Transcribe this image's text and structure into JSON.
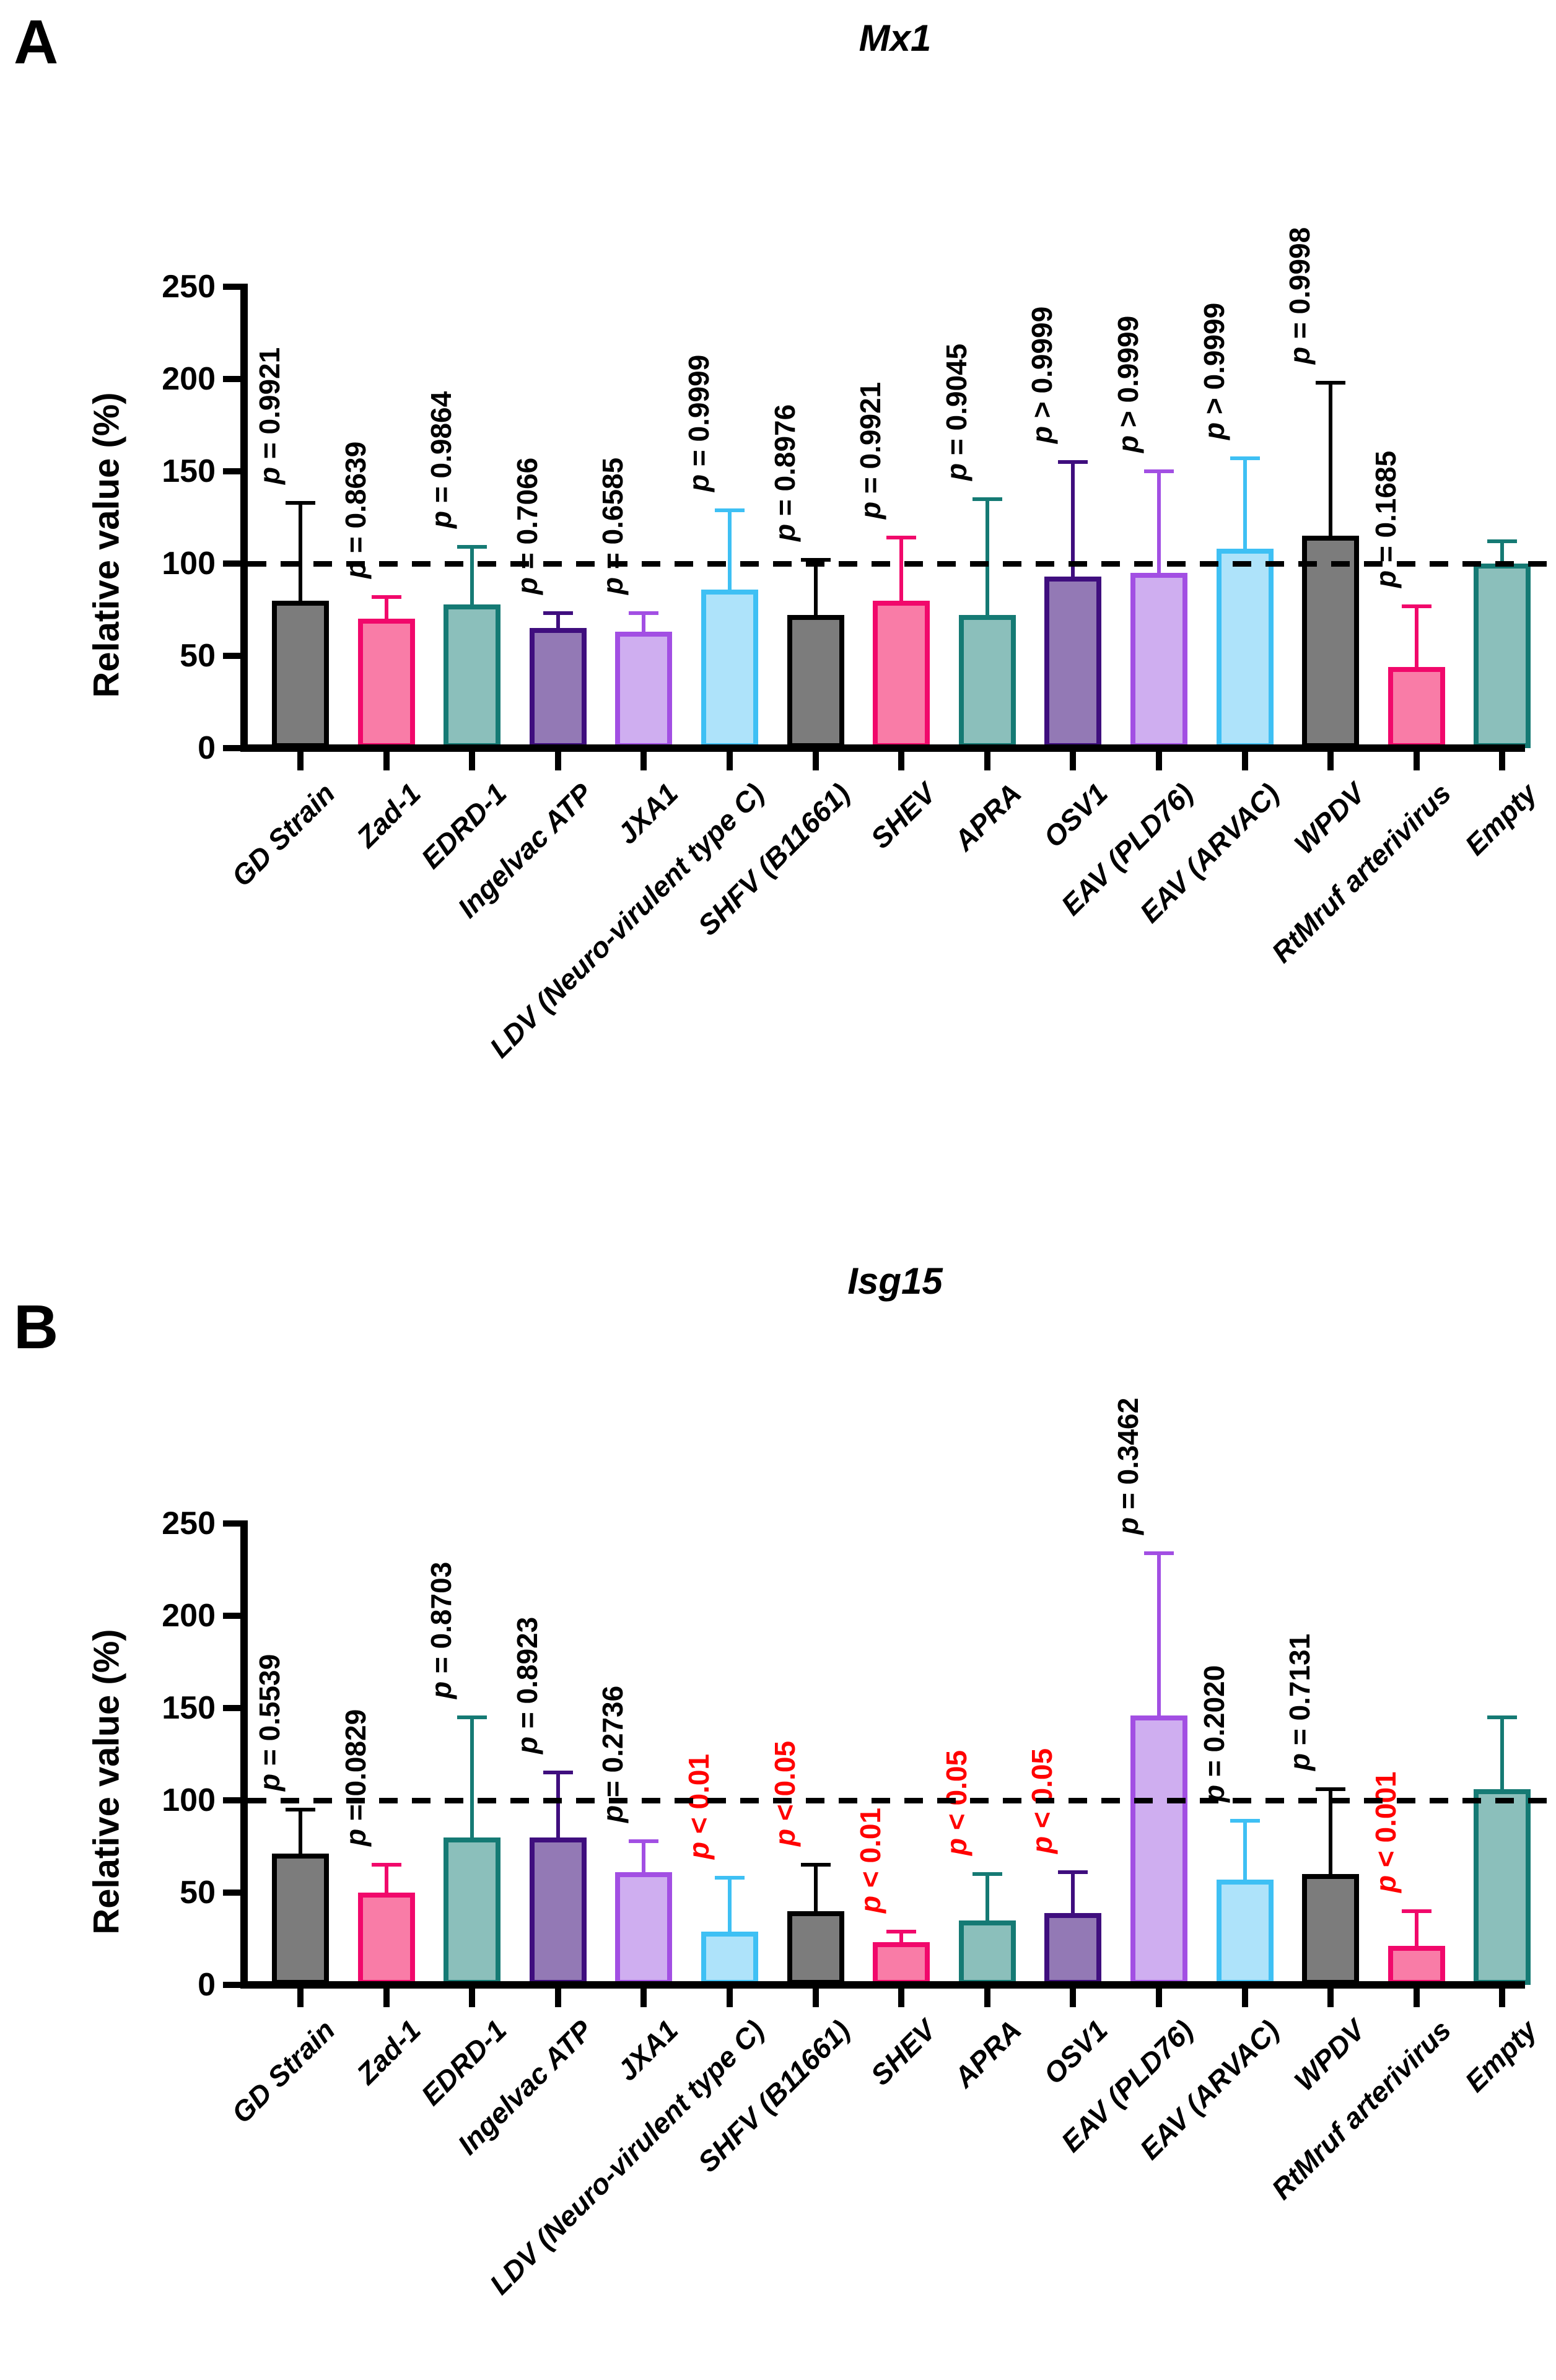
{
  "figure": {
    "background": "#FFFFFF",
    "panels": [
      {
        "label": "A",
        "title": "Mx1",
        "ylabel": "Relative value (%)"
      },
      {
        "label": "B",
        "title": "Isg15",
        "ylabel": "Relative value (%)"
      }
    ]
  },
  "palette": {
    "bar_styles": [
      {
        "name": "gray",
        "fill": "#7C7C7C",
        "stroke": "#000000"
      },
      {
        "name": "pink",
        "fill": "#F97CA7",
        "stroke": "#F1086B"
      },
      {
        "name": "teal",
        "fill": "#8BBFBB",
        "stroke": "#157A74"
      },
      {
        "name": "dark-purple",
        "fill": "#9379B5",
        "stroke": "#3F0E7E"
      },
      {
        "name": "light-purple",
        "fill": "#CFAEF0",
        "stroke": "#A24FE3"
      },
      {
        "name": "light-blue",
        "fill": "#AEE3FA",
        "stroke": "#3EC0F4"
      }
    ],
    "significant_p_color": "#FF0000",
    "normal_p_color": "#000000",
    "reference_line_color": "#000000"
  },
  "chart_data": [
    {
      "type": "bar",
      "title": "Mx1",
      "xlabel": "",
      "ylabel": "Relative value (%)",
      "ylim": [
        0,
        250
      ],
      "yticks": [
        0,
        50,
        100,
        150,
        200,
        250
      ],
      "reference_line_y": 100,
      "grid": false,
      "legend": "none",
      "categories": [
        "GD Strain",
        "Zad-1",
        "EDRD-1",
        "Ingelvac ATP",
        "JXA1",
        "LDV (Neuro-virulent type C)",
        "SHFV (B11661)",
        "SHEV",
        "APRA",
        "OSV1",
        "EAV (PLD76)",
        "EAV (ARVAC)",
        "WPDV",
        "RtMruf arterivirus",
        "Empty"
      ],
      "values": [
        80,
        70,
        78,
        65,
        63,
        86,
        72,
        80,
        72,
        93,
        95,
        108,
        115,
        44,
        100
      ],
      "errors_upper": [
        133,
        82,
        109,
        73,
        73,
        129,
        102,
        114,
        135,
        155,
        150,
        157,
        198,
        77,
        112
      ],
      "p_labels": [
        "p = 0.9921",
        "p = 0.8639",
        "p = 0.9864",
        "p = 0.7066",
        "p = 0.6585",
        "p = 0.9999",
        "p = 0.8976",
        "p = 0.9921",
        "p = 0.9045",
        "p > 0.9999",
        "p > 0.9999",
        "p > 0.9999",
        "p = 0.9998",
        "p = 0.1685",
        ""
      ],
      "p_significant": [
        false,
        false,
        false,
        false,
        false,
        false,
        false,
        false,
        false,
        false,
        false,
        false,
        false,
        false,
        false
      ]
    },
    {
      "type": "bar",
      "title": "Isg15",
      "xlabel": "",
      "ylabel": "Relative value (%)",
      "ylim": [
        0,
        250
      ],
      "yticks": [
        0,
        50,
        100,
        150,
        200,
        250
      ],
      "reference_line_y": 100,
      "grid": false,
      "legend": "none",
      "categories": [
        "GD Strain",
        "Zad-1",
        "EDRD-1",
        "Ingelvac ATP",
        "JXA1",
        "LDV (Neuro-virulent type C)",
        "SHFV (B11661)",
        "SHEV",
        "APRA",
        "OSV1",
        "EAV (PLD76)",
        "EAV (ARVAC)",
        "WPDV",
        "RtMruf arterivirus",
        "Empty"
      ],
      "values": [
        71,
        50,
        80,
        80,
        61,
        29,
        40,
        23,
        35,
        39,
        146,
        57,
        60,
        21,
        106
      ],
      "errors_upper": [
        95,
        65,
        145,
        115,
        78,
        58,
        65,
        29,
        60,
        61,
        234,
        89,
        106,
        40,
        145
      ],
      "p_labels": [
        "p = 0.5539",
        "p = 0.0829",
        "p = 0.8703",
        "p = 0.8923",
        "p = 0.2736",
        "p < 0.01",
        "p < 0.05",
        "p < 0.01",
        "p < 0.05",
        "p < 0.05",
        "p = 0.3462",
        "p = 0.2020",
        "p = 0.7131",
        "p < 0.001",
        ""
      ],
      "p_significant": [
        false,
        false,
        false,
        false,
        false,
        true,
        true,
        true,
        true,
        true,
        false,
        false,
        false,
        true,
        false
      ]
    }
  ]
}
